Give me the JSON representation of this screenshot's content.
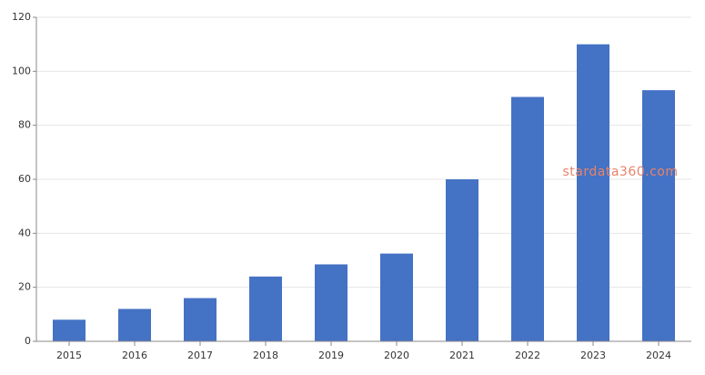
{
  "chart_data": {
    "type": "bar",
    "categories": [
      "2015",
      "2016",
      "2017",
      "2018",
      "2019",
      "2020",
      "2021",
      "2022",
      "2023",
      "2024"
    ],
    "values": [
      8,
      12,
      16,
      24,
      28.5,
      32.5,
      60,
      90.5,
      110,
      93
    ],
    "color": "#4472c4",
    "ylim": [
      0,
      120
    ],
    "yticks": [
      0,
      20,
      40,
      60,
      80,
      100,
      120
    ],
    "grid": true,
    "annotation": "stardata360.com"
  }
}
